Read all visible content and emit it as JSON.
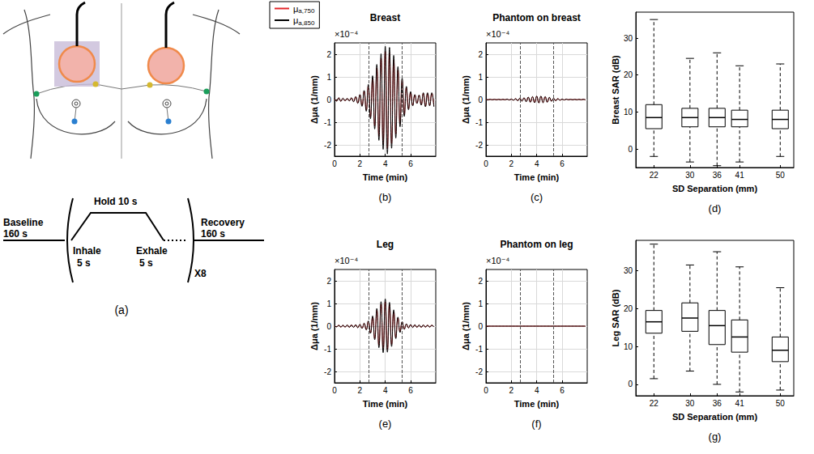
{
  "protocol_diagram": {
    "panel": "(a)",
    "baseline": {
      "label": "Baseline",
      "duration": "160 s"
    },
    "inhale": {
      "label": "Inhale",
      "duration": "5 s"
    },
    "hold": "Hold 10 s",
    "exhale": {
      "label": "Exhale",
      "duration": "5 s"
    },
    "repeat": "X8",
    "recovery": {
      "label": "Recovery",
      "duration": "160 s"
    }
  },
  "chart_data": [
    {
      "type": "line",
      "panel": "(b)",
      "title": "Breast",
      "y_multiplier": "×10⁻⁴",
      "xlabel": "Time (min)",
      "ylabel": "Δμa (1/mm)",
      "xlim": [
        0,
        7.98
      ],
      "xticks": [
        0,
        2,
        4,
        6
      ],
      "ylim": [
        -2.5,
        2.5
      ],
      "yticks": [
        -2,
        -1,
        0,
        1,
        2
      ],
      "grid": true,
      "legend": "upper left",
      "vlines": [
        2.667,
        5.333
      ],
      "x": [
        0,
        0.167,
        0.333,
        0.5,
        0.667,
        0.833,
        1,
        1.167,
        1.333,
        1.5,
        1.667,
        1.833,
        2,
        2.167,
        2.333,
        2.5,
        2.667,
        2.833,
        3,
        3.167,
        3.333,
        3.5,
        3.667,
        3.833,
        4,
        4.167,
        4.333,
        4.5,
        4.667,
        4.833,
        5,
        5.167,
        5.333,
        5.5,
        5.667,
        5.833,
        6,
        6.167,
        6.333,
        6.5,
        6.667,
        6.833,
        7,
        7.167,
        7.333,
        7.5,
        7.667,
        7.833
      ],
      "series": [
        {
          "name": "μa,750",
          "color": "#e3262b",
          "values": [
            0.04,
            -0.06,
            0.07,
            -0.07,
            0.05,
            -0.05,
            0.04,
            -0.05,
            0.07,
            -0.09,
            0.12,
            -0.15,
            0.2,
            -0.27,
            0.36,
            -0.47,
            0.6,
            -0.77,
            0.95,
            -1.17,
            1.4,
            -1.62,
            1.82,
            -1.98,
            2.12,
            -2.16,
            2.07,
            -1.94,
            1.76,
            -1.53,
            1.31,
            -1.08,
            0.86,
            -0.68,
            0.52,
            -0.41,
            0.32,
            -0.25,
            0.2,
            -0.16,
            0.18,
            -0.23,
            0.27,
            -0.29,
            0.27,
            -0.25,
            0.27,
            -0.29
          ]
        },
        {
          "name": "μa,850",
          "color": "#000000",
          "values": [
            0.05,
            -0.07,
            0.08,
            -0.08,
            0.06,
            -0.05,
            0.05,
            -0.06,
            0.08,
            -0.1,
            0.13,
            -0.17,
            0.22,
            -0.3,
            0.4,
            -0.52,
            0.67,
            -0.85,
            1.05,
            -1.3,
            1.55,
            -1.8,
            2.02,
            -2.2,
            2.35,
            -2.4,
            2.3,
            -2.15,
            1.95,
            -1.7,
            1.45,
            -1.2,
            0.95,
            -0.75,
            0.58,
            -0.45,
            0.35,
            -0.28,
            0.22,
            -0.18,
            0.2,
            -0.25,
            0.3,
            -0.32,
            0.3,
            -0.28,
            0.3,
            -0.32
          ]
        }
      ]
    },
    {
      "type": "line",
      "panel": "(c)",
      "title": "Phantom on breast",
      "y_multiplier": "×10⁻⁴",
      "xlabel": "Time (min)",
      "ylabel": "Δμa (1/mm)",
      "xlim": [
        0,
        7.98
      ],
      "xticks": [
        0,
        2,
        4,
        6
      ],
      "ylim": [
        -2.5,
        2.5
      ],
      "yticks": [
        -2,
        -1,
        0,
        1,
        2
      ],
      "grid": true,
      "vlines": [
        2.667,
        5.333
      ],
      "x": [
        0,
        0.167,
        0.333,
        0.5,
        0.667,
        0.833,
        1,
        1.167,
        1.333,
        1.5,
        1.667,
        1.833,
        2,
        2.167,
        2.333,
        2.5,
        2.667,
        2.833,
        3,
        3.167,
        3.333,
        3.5,
        3.667,
        3.833,
        4,
        4.167,
        4.333,
        4.5,
        4.667,
        4.833,
        5,
        5.167,
        5.333,
        5.5,
        5.667,
        5.833,
        6,
        6.167,
        6.333,
        6.5,
        6.667,
        6.833,
        7,
        7.167,
        7.333,
        7.5,
        7.667,
        7.833
      ],
      "series": [
        {
          "name": "μa,750",
          "color": "#e3262b",
          "values": [
            0.01,
            -0.01,
            0.01,
            -0.01,
            0.01,
            -0.01,
            0.01,
            -0.01,
            0.01,
            -0.01,
            0.02,
            -0.02,
            0.02,
            -0.03,
            0.04,
            -0.04,
            0.05,
            -0.06,
            0.07,
            -0.09,
            0.1,
            -0.11,
            0.12,
            -0.13,
            0.14,
            -0.14,
            0.14,
            -0.13,
            0.12,
            -0.11,
            0.09,
            -0.07,
            0.05,
            -0.05,
            0.04,
            -0.03,
            0.02,
            -0.02,
            0.02,
            -0.01,
            0.01,
            -0.01,
            0.01,
            -0.01,
            0.01,
            -0.01,
            0.01,
            -0.01
          ]
        },
        {
          "name": "μa,850",
          "color": "#000000",
          "values": [
            0.01,
            -0.01,
            0.01,
            -0.01,
            0.01,
            -0.01,
            0.01,
            -0.01,
            0.01,
            -0.01,
            0.02,
            -0.02,
            0.02,
            -0.03,
            0.04,
            -0.05,
            0.06,
            -0.07,
            0.08,
            -0.1,
            0.11,
            -0.12,
            0.13,
            -0.14,
            0.15,
            -0.15,
            0.15,
            -0.14,
            0.13,
            -0.12,
            0.1,
            -0.08,
            0.06,
            -0.05,
            0.04,
            -0.03,
            0.02,
            -0.02,
            0.02,
            -0.01,
            0.01,
            -0.01,
            0.01,
            -0.01,
            0.01,
            -0.01,
            0.01,
            -0.01
          ]
        }
      ]
    },
    {
      "type": "boxplot",
      "panel": "(d)",
      "xlabel": "SD Separation (mm)",
      "ylabel": "Breast SAR (dB)",
      "xlim": [
        18,
        53
      ],
      "xticks": [
        22,
        30,
        36,
        41,
        50
      ],
      "ylim": [
        -5,
        37
      ],
      "yticks": [
        0,
        10,
        20,
        30
      ],
      "grid": false,
      "x": [
        22,
        30,
        36,
        41,
        50
      ],
      "boxes": [
        [
          -2,
          5.5,
          8.5,
          12,
          35
        ],
        [
          -3.5,
          6,
          8.5,
          11,
          24.5
        ],
        [
          -4.5,
          6,
          8.5,
          11,
          26
        ],
        [
          -3.5,
          6,
          8,
          10.5,
          22.5
        ],
        [
          -2,
          5.5,
          8,
          10.5,
          23
        ]
      ]
    },
    {
      "type": "line",
      "panel": "(e)",
      "title": "Leg",
      "y_multiplier": "×10⁻⁴",
      "xlabel": "Time (min)",
      "ylabel": "Δμa (1/mm)",
      "xlim": [
        0,
        7.98
      ],
      "xticks": [
        0,
        2,
        4,
        6
      ],
      "ylim": [
        -2.5,
        2.5
      ],
      "yticks": [
        -2,
        -1,
        0,
        1,
        2
      ],
      "grid": true,
      "vlines": [
        2.667,
        5.333
      ],
      "x": [
        0,
        0.167,
        0.333,
        0.5,
        0.667,
        0.833,
        1,
        1.167,
        1.333,
        1.5,
        1.667,
        1.833,
        2,
        2.167,
        2.333,
        2.5,
        2.667,
        2.833,
        3,
        3.167,
        3.333,
        3.5,
        3.667,
        3.833,
        4,
        4.167,
        4.333,
        4.5,
        4.667,
        4.833,
        5,
        5.167,
        5.333,
        5.5,
        5.667,
        5.833,
        6,
        6.167,
        6.333,
        6.5,
        6.667,
        6.833,
        7,
        7.167,
        7.333,
        7.5,
        7.667,
        7.833
      ],
      "series": [
        {
          "name": "μa,750",
          "color": "#e3262b",
          "values": [
            0.03,
            -0.03,
            0.04,
            -0.04,
            0.04,
            -0.04,
            0.05,
            -0.05,
            0.05,
            -0.05,
            0.05,
            -0.06,
            0.07,
            -0.09,
            0.12,
            -0.15,
            0.21,
            -0.29,
            0.41,
            -0.54,
            0.7,
            -0.86,
            0.97,
            -1.05,
            1.08,
            -1.04,
            0.95,
            -0.81,
            0.65,
            -0.5,
            0.36,
            -0.25,
            0.18,
            -0.13,
            0.09,
            -0.07,
            0.06,
            -0.05,
            0.05,
            -0.05,
            0.05,
            -0.05,
            0.05,
            -0.04,
            0.04,
            -0.04,
            0.04,
            -0.03
          ]
        },
        {
          "name": "μa,850",
          "color": "#000000",
          "values": [
            0.03,
            -0.03,
            0.04,
            -0.04,
            0.04,
            -0.04,
            0.05,
            -0.05,
            0.05,
            -0.05,
            0.06,
            -0.07,
            0.08,
            -0.1,
            0.13,
            -0.17,
            0.23,
            -0.32,
            0.45,
            -0.6,
            0.78,
            -0.95,
            1.08,
            -1.17,
            1.2,
            -1.15,
            1.05,
            -0.9,
            0.72,
            -0.55,
            0.4,
            -0.28,
            0.2,
            -0.14,
            0.1,
            -0.08,
            0.07,
            -0.06,
            0.06,
            -0.05,
            0.05,
            -0.05,
            0.05,
            -0.04,
            0.04,
            -0.04,
            0.04,
            -0.03
          ]
        }
      ]
    },
    {
      "type": "line",
      "panel": "(f)",
      "title": "Phantom on leg",
      "y_multiplier": "×10⁻⁴",
      "xlabel": "Time (min)",
      "ylabel": "Δμa (1/mm)",
      "xlim": [
        0,
        7.98
      ],
      "xticks": [
        0,
        2,
        4,
        6
      ],
      "ylim": [
        -2.5,
        2.5
      ],
      "yticks": [
        -2,
        -1,
        0,
        1,
        2
      ],
      "grid": true,
      "vlines": [
        2.667,
        5.333
      ],
      "x": [
        0,
        0.167,
        0.333,
        0.5,
        0.667,
        0.833,
        1,
        1.167,
        1.333,
        1.5,
        1.667,
        1.833,
        2,
        2.167,
        2.333,
        2.5,
        2.667,
        2.833,
        3,
        3.167,
        3.333,
        3.5,
        3.667,
        3.833,
        4,
        4.167,
        4.333,
        4.5,
        4.667,
        4.833,
        5,
        5.167,
        5.333,
        5.5,
        5.667,
        5.833,
        6,
        6.167,
        6.333,
        6.5,
        6.667,
        6.833,
        7,
        7.167,
        7.333,
        7.5,
        7.667,
        7.833
      ],
      "series": [
        {
          "name": "μa,750",
          "color": "#e3262b",
          "values": [
            0,
            0,
            0,
            0,
            0,
            0,
            0,
            0,
            0,
            0,
            0,
            0,
            0,
            0,
            0,
            0,
            0,
            0,
            0,
            0,
            0,
            0,
            0,
            0,
            0,
            0,
            0,
            0,
            0,
            0,
            0,
            0,
            0,
            0,
            0,
            0,
            0,
            0,
            0,
            0,
            0,
            0,
            0,
            0,
            0,
            0,
            0,
            0
          ]
        },
        {
          "name": "μa,850",
          "color": "#000000",
          "values": [
            0,
            0,
            0,
            0,
            0,
            0,
            0,
            0,
            0,
            0,
            0,
            0,
            0,
            0,
            0,
            0,
            0,
            0,
            0,
            0,
            0,
            0,
            0,
            0,
            0,
            0,
            0,
            0,
            0,
            0,
            0,
            0,
            0,
            0,
            0,
            0,
            0,
            0,
            0,
            0,
            0,
            0,
            0,
            0,
            0,
            0,
            0,
            0
          ]
        }
      ]
    },
    {
      "type": "boxplot",
      "panel": "(g)",
      "xlabel": "SD Separation (mm)",
      "ylabel": "Leg SAR (dB)",
      "xlim": [
        18,
        53
      ],
      "xticks": [
        22,
        30,
        36,
        41,
        50
      ],
      "ylim": [
        -3,
        38
      ],
      "yticks": [
        0,
        10,
        20,
        30
      ],
      "grid": false,
      "x": [
        22,
        30,
        36,
        41,
        50
      ],
      "boxes": [
        [
          1.5,
          13.5,
          16.5,
          19.5,
          37
        ],
        [
          3.5,
          14,
          17.5,
          21.5,
          31.5
        ],
        [
          0,
          10.5,
          15.5,
          19.5,
          35
        ],
        [
          -2,
          8.5,
          12.5,
          17,
          31
        ],
        [
          -1.5,
          6,
          9,
          12.5,
          25.5
        ]
      ]
    }
  ]
}
